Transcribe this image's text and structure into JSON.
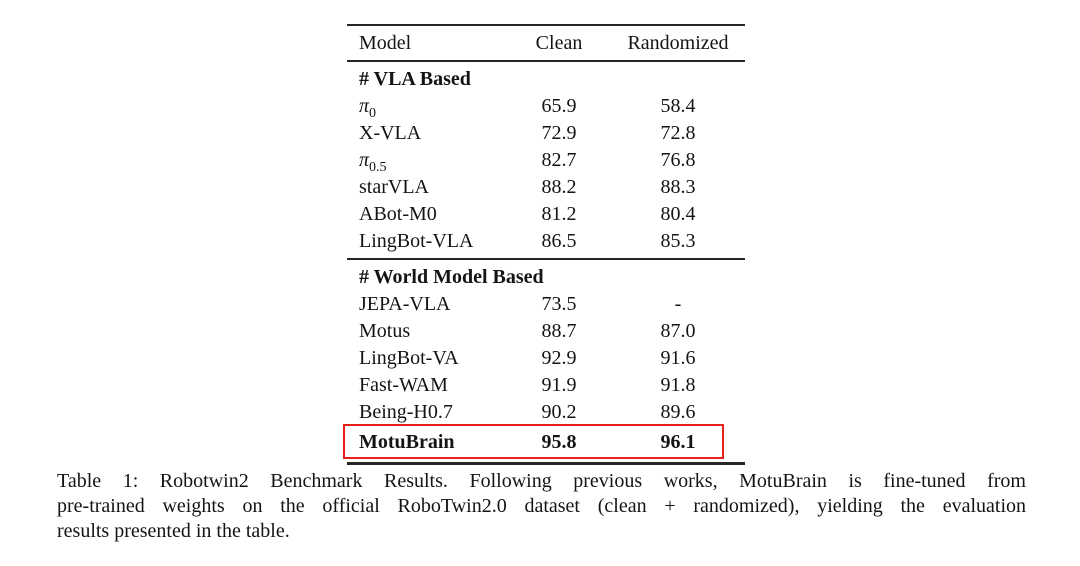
{
  "table": {
    "columns": [
      "Model",
      "Clean",
      "Randomized"
    ],
    "highlight_color": "#e8201a",
    "sections": [
      {
        "header": "# VLA Based",
        "rows": [
          {
            "model": "π",
            "model_sub": "0",
            "clean": "65.9",
            "randomized": "58.4",
            "bold": false,
            "highlight": false
          },
          {
            "model": "X-VLA",
            "model_sub": "",
            "clean": "72.9",
            "randomized": "72.8",
            "bold": false,
            "highlight": false
          },
          {
            "model": "π",
            "model_sub": "0.5",
            "clean": "82.7",
            "randomized": "76.8",
            "bold": false,
            "highlight": false
          },
          {
            "model": "starVLA",
            "model_sub": "",
            "clean": "88.2",
            "randomized": "88.3",
            "bold": false,
            "highlight": false
          },
          {
            "model": "ABot-M0",
            "model_sub": "",
            "clean": "81.2",
            "randomized": "80.4",
            "bold": false,
            "highlight": false
          },
          {
            "model": "LingBot-VLA",
            "model_sub": "",
            "clean": "86.5",
            "randomized": "85.3",
            "bold": false,
            "highlight": false
          }
        ]
      },
      {
        "header": "# World Model Based",
        "rows": [
          {
            "model": "JEPA-VLA",
            "model_sub": "",
            "clean": "73.5",
            "randomized": "-",
            "bold": false,
            "highlight": false
          },
          {
            "model": "Motus",
            "model_sub": "",
            "clean": "88.7",
            "randomized": "87.0",
            "bold": false,
            "highlight": false
          },
          {
            "model": "LingBot-VA",
            "model_sub": "",
            "clean": "92.9",
            "randomized": "91.6",
            "bold": false,
            "highlight": false
          },
          {
            "model": "Fast-WAM",
            "model_sub": "",
            "clean": "91.9",
            "randomized": "91.8",
            "bold": false,
            "highlight": false
          },
          {
            "model": "Being-H0.7",
            "model_sub": "",
            "clean": "90.2",
            "randomized": "89.6",
            "bold": false,
            "highlight": false
          },
          {
            "model": "MotuBrain",
            "model_sub": "",
            "clean": "95.8",
            "randomized": "96.1",
            "bold": true,
            "highlight": true
          }
        ]
      }
    ]
  },
  "caption": {
    "lines": [
      "Table 1: Robotwin2 Benchmark Results. Following previous works, MotuBrain is fine-tuned from",
      "pre-trained weights on the official RoboTwin2.0 dataset (clean + randomized), yielding the evaluation",
      "results presented in the table."
    ]
  }
}
